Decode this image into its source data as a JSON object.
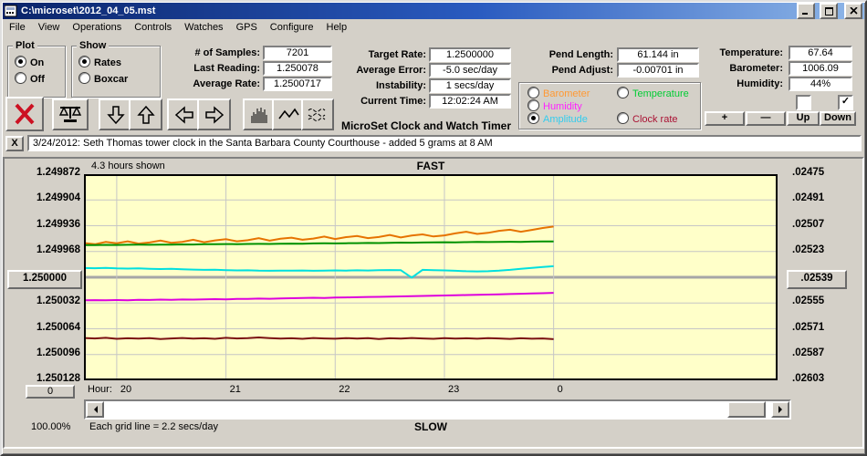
{
  "window": {
    "title": "C:\\microset\\2012_04_05.mst"
  },
  "menu": {
    "items": [
      "File",
      "View",
      "Operations",
      "Controls",
      "Watches",
      "GPS",
      "Configure",
      "Help"
    ]
  },
  "plot_group": {
    "title": "Plot",
    "on": "On",
    "off": "Off",
    "selected": "On"
  },
  "show_group": {
    "title": "Show",
    "rates": "Rates",
    "boxcar": "Boxcar",
    "selected": "Rates"
  },
  "stats_left": [
    {
      "label": "# of Samples:",
      "value": "7201"
    },
    {
      "label": "Last Reading:",
      "value": "1.250078"
    },
    {
      "label": "Average Rate:",
      "value": "1.2500717"
    }
  ],
  "stats_mid": [
    {
      "label": "Target Rate:",
      "value": "1.2500000"
    },
    {
      "label": "Average Error:",
      "value": "-5.0 sec/day"
    },
    {
      "label": "Instability:",
      "value": "1 secs/day"
    },
    {
      "label": "Current Time:",
      "value": "12:02:24 AM"
    }
  ],
  "stats_pend": [
    {
      "label": "Pend Length:",
      "value": "61.144 in"
    },
    {
      "label": "Pend Adjust:",
      "value": "-0.00701 in"
    }
  ],
  "stats_env": [
    {
      "label": "Temperature:",
      "value": "67.64"
    },
    {
      "label": "Barometer:",
      "value": "1006.09"
    },
    {
      "label": "Humidity:",
      "value": "44%"
    }
  ],
  "sensor_group": {
    "options": [
      {
        "label": "Barometer",
        "color": "#FF9933",
        "selected": false
      },
      {
        "label": "Temperature",
        "color": "#00CC33",
        "selected": false
      },
      {
        "label": "Humidity",
        "color": "#FF22FF",
        "selected": false
      },
      {
        "label": "Amplitude",
        "color": "#33CCEE",
        "selected": true
      },
      {
        "label": "Clock rate",
        "color": "#AA1133",
        "selected": false
      }
    ]
  },
  "checkboxes": {
    "left_checked": false,
    "right_checked": true,
    "check_glyph": "✓"
  },
  "adjust": {
    "plus": "+",
    "minus": "—",
    "up": "Up",
    "down": "Down"
  },
  "app_title": "MicroSet Clock and Watch Timer",
  "note": {
    "close": "X",
    "text": "3/24/2012: Seth Thomas tower clock in the Santa Barbara County Courthouse - added 5 grams at 8 AM"
  },
  "chart_data": {
    "type": "line",
    "header": {
      "hours_shown": "4.3 hours shown",
      "fast": "FAST"
    },
    "footer": {
      "zoom": "100.00%",
      "grid_note": "Each grid line = 2.2 secs/day",
      "slow": "SLOW",
      "zero_button": "0"
    },
    "x_axis": {
      "label": "Hour:",
      "range": [
        19.7,
        26.05
      ],
      "ticks": [
        {
          "x": 20,
          "label": "20"
        },
        {
          "x": 21,
          "label": "21"
        },
        {
          "x": 22,
          "label": "22"
        },
        {
          "x": 23,
          "label": "23"
        },
        {
          "x": 24,
          "label": "0"
        }
      ]
    },
    "y_axis_left": {
      "labels": [
        "1.249872",
        "1.249904",
        "1.249936",
        "1.249968",
        "1.250000",
        "1.250032",
        "1.250064",
        "1.250096",
        "1.250128"
      ],
      "range_top": 1.249872,
      "range_bottom": 1.250128,
      "center_button_index": 4
    },
    "y_axis_right": {
      "labels": [
        ".02475",
        ".02491",
        ".02507",
        ".02523",
        ".02539",
        ".02555",
        ".02571",
        ".02587",
        ".02603"
      ],
      "center_button_index": 4
    },
    "colors": {
      "background": "#FFFFC9",
      "grid": "#C6C6C6",
      "center_line": "#A6A6A6",
      "border": "#000000"
    },
    "series": [
      {
        "name": "Barometer",
        "color": "#E67300",
        "x_start": 19.7,
        "x_step": 0.1,
        "values": [
          1.2499575,
          1.249959,
          1.2499562,
          1.2499578,
          1.2499555,
          1.2499582,
          1.2499568,
          1.2499545,
          1.2499572,
          1.249956,
          1.2499535,
          1.2499565,
          1.2499542,
          1.2499528,
          1.2499554,
          1.249954,
          1.2499515,
          1.2499545,
          1.2499522,
          1.2499508,
          1.2499534,
          1.249952,
          1.2499495,
          1.2499525,
          1.2499502,
          1.2499488,
          1.2499514,
          1.24995,
          1.2499475,
          1.2499505,
          1.2499482,
          1.2499468,
          1.2499494,
          1.249948,
          1.2499455,
          1.2499435,
          1.2499462,
          1.2499448,
          1.2499424,
          1.249941,
          1.2499435,
          1.2499412,
          1.2499388,
          1.249937
        ]
      },
      {
        "name": "Temperature",
        "color": "#009100",
        "x_start": 19.7,
        "x_step": 0.1,
        "values": [
          1.24996,
          1.24996,
          1.2499598,
          1.2499599,
          1.2499597,
          1.2499596,
          1.2499597,
          1.2499595,
          1.2499594,
          1.2499592,
          1.2499593,
          1.249959,
          1.249959,
          1.2499588,
          1.2499589,
          1.2499587,
          1.2499585,
          1.2499586,
          1.2499584,
          1.2499582,
          1.2499583,
          1.249958,
          1.2499579,
          1.249958,
          1.2499577,
          1.2499576,
          1.2499574,
          1.2499575,
          1.2499572,
          1.249957,
          1.2499571,
          1.2499568,
          1.2499567,
          1.2499565,
          1.2499566,
          1.2499564,
          1.2499562,
          1.2499563,
          1.249956,
          1.2499559,
          1.249956,
          1.2499557,
          1.2499556,
          1.2499555
        ]
      },
      {
        "name": "Amplitude",
        "color": "#00DFDF",
        "x_start": 19.7,
        "x_step": 0.1,
        "values": [
          1.2499886,
          1.2499888,
          1.2499885,
          1.249989,
          1.2499892,
          1.249989,
          1.2499895,
          1.2499898,
          1.2499896,
          1.2499902,
          1.2499905,
          1.2499908,
          1.2499906,
          1.2499912,
          1.2499915,
          1.2499914,
          1.2499918,
          1.249992,
          1.2499917,
          1.2499919,
          1.2499916,
          1.249992,
          1.2499918,
          1.2499915,
          1.2499917,
          1.2499914,
          1.2499916,
          1.2499913,
          1.249991,
          1.2499912,
          1.2500005,
          1.2499908,
          1.2499912,
          1.2499915,
          1.249992,
          1.2499925,
          1.2499928,
          1.2499925,
          1.2499918,
          1.2499908,
          1.2499895,
          1.2499885,
          1.2499872,
          1.2499863
        ]
      },
      {
        "name": "Humidity",
        "color": "#DD00DD",
        "x_start": 19.7,
        "x_step": 0.1,
        "values": [
          1.2500286,
          1.2500284,
          1.2500287,
          1.2500283,
          1.2500285,
          1.250028,
          1.2500282,
          1.2500278,
          1.250028,
          1.2500276,
          1.2500278,
          1.2500274,
          1.2500272,
          1.2500275,
          1.250027,
          1.2500268,
          1.2500265,
          1.2500267,
          1.2500263,
          1.250026,
          1.2500258,
          1.2500255,
          1.2500257,
          1.2500252,
          1.250025,
          1.2500248,
          1.2500245,
          1.2500243,
          1.250024,
          1.2500238,
          1.2500235,
          1.2500232,
          1.250023,
          1.2500227,
          1.2500224,
          1.2500221,
          1.2500218,
          1.2500215,
          1.2500212,
          1.2500208,
          1.2500205,
          1.2500201,
          1.2500198,
          1.2500194
        ]
      },
      {
        "name": "Clock rate",
        "color": "#7B1212",
        "x_start": 19.7,
        "x_step": 0.1,
        "values": [
          1.2500754,
          1.250076,
          1.2500752,
          1.2500765,
          1.2500758,
          1.2500762,
          1.2500755,
          1.2500768,
          1.250076,
          1.2500754,
          1.2500762,
          1.2500758,
          1.2500765,
          1.2500752,
          1.250076,
          1.2500756,
          1.2500748,
          1.2500755,
          1.2500762,
          1.2500758,
          1.2500765,
          1.2500754,
          1.250076,
          1.2500764,
          1.2500756,
          1.2500762,
          1.2500755,
          1.2500768,
          1.2500758,
          1.2500762,
          1.2500754,
          1.250076,
          1.2500765,
          1.2500756,
          1.2500762,
          1.2500758,
          1.2500764,
          1.2500755,
          1.250076,
          1.2500766,
          1.2500758,
          1.2500763,
          1.250076,
          1.2500769
        ]
      }
    ]
  }
}
